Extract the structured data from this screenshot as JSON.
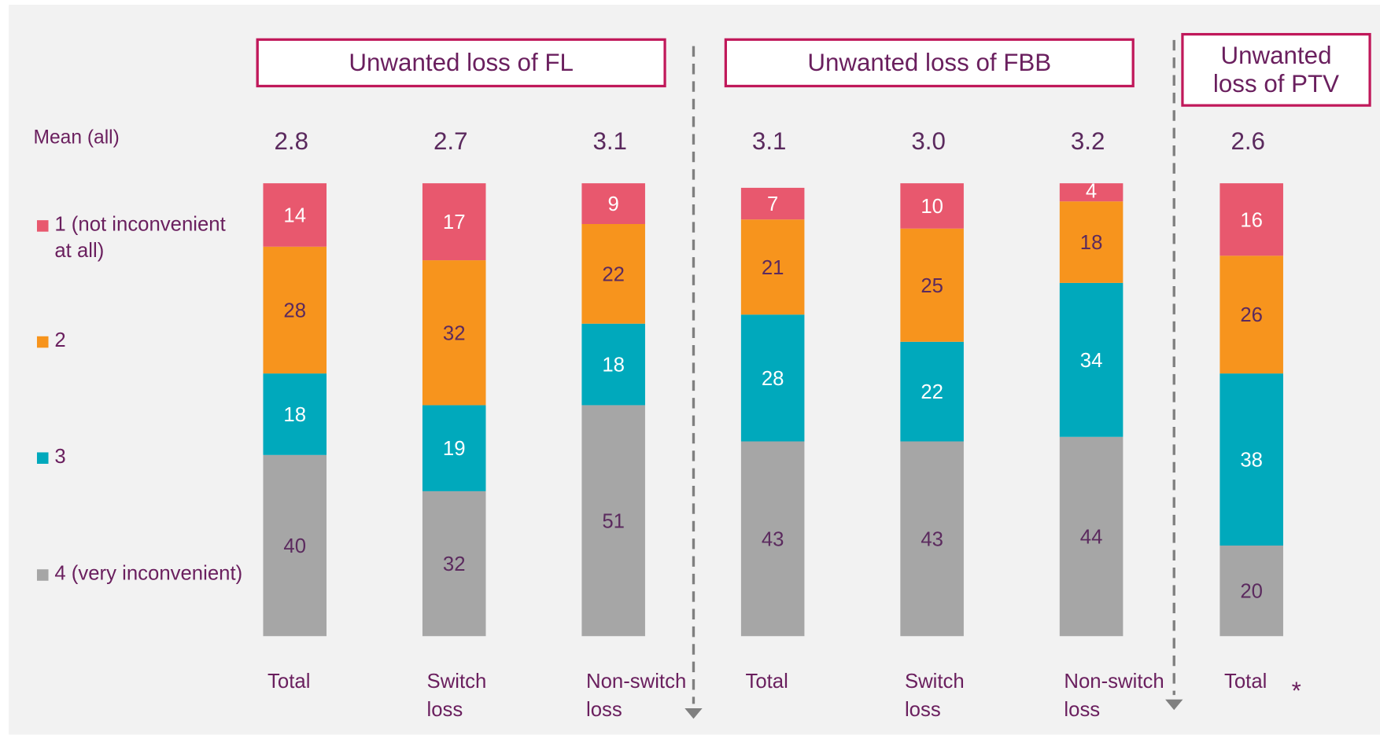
{
  "chart_data": {
    "type": "stacked_bar",
    "groups": [
      "Unwanted loss of FL",
      "Unwanted loss of FBB",
      "Unwanted loss of PTV"
    ],
    "categories": [
      "Total",
      "Switch loss",
      "Non-switch loss",
      "Total",
      "Switch loss",
      "Non-switch loss",
      "Total"
    ],
    "mean": {
      "label": "Mean (all)",
      "values": [
        2.8,
        2.7,
        3.1,
        3.1,
        3.0,
        3.2,
        2.6
      ],
      "value_labels": [
        "2.8",
        "2.7",
        "3.1",
        "3.1",
        "3.0",
        "3.2",
        "2.6"
      ]
    },
    "series": [
      {
        "name": "1 (not inconvenient at all)",
        "color": "#e8586e",
        "label_color": "#ffffff",
        "values": [
          14,
          17,
          9,
          7,
          10,
          4,
          16
        ]
      },
      {
        "name": "2",
        "color": "#f7941d",
        "label_color": "#5b2a5e",
        "values": [
          28,
          32,
          22,
          21,
          25,
          18,
          26
        ]
      },
      {
        "name": "3",
        "color": "#00a9bc",
        "label_color": "#ffffff",
        "values": [
          18,
          19,
          18,
          28,
          22,
          34,
          38
        ]
      },
      {
        "name": "4 (very inconvenient)",
        "color": "#a6a6a6",
        "label_color": "#5b2a5e",
        "values": [
          40,
          32,
          51,
          43,
          43,
          44,
          20
        ]
      }
    ],
    "ylim": [
      0,
      100
    ],
    "note": "*"
  }
}
